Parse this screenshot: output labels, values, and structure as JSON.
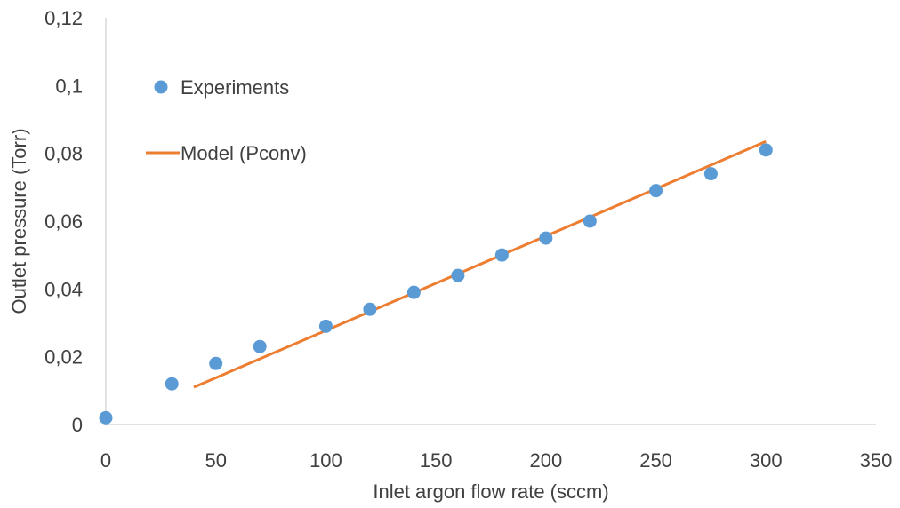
{
  "chart_data": {
    "type": "scatter",
    "xlabel": "Inlet argon flow rate (sccm)",
    "ylabel": "Outlet pressure (Torr)",
    "xlim": [
      0,
      350
    ],
    "ylim": [
      0,
      0.12
    ],
    "x_ticks": [
      0,
      50,
      100,
      150,
      200,
      250,
      300,
      350
    ],
    "x_tick_labels": [
      "0",
      "50",
      "100",
      "150",
      "200",
      "250",
      "300",
      "350"
    ],
    "y_ticks": [
      0,
      0.02,
      0.04,
      0.06,
      0.08,
      0.1,
      0.12
    ],
    "y_tick_labels": [
      "0",
      "0,02",
      "0,04",
      "0,06",
      "0,08",
      "0,1",
      "0,12"
    ],
    "grid": false,
    "legend_position": "top-left",
    "series": [
      {
        "name": "Experiments",
        "kind": "scatter",
        "color": "#5B9BD5",
        "x": [
          0,
          30,
          50,
          70,
          100,
          120,
          140,
          160,
          180,
          200,
          220,
          250,
          275,
          300
        ],
        "y": [
          0.002,
          0.012,
          0.018,
          0.023,
          0.029,
          0.034,
          0.039,
          0.044,
          0.05,
          0.055,
          0.06,
          0.069,
          0.074,
          0.081
        ]
      },
      {
        "name": "Model (Pconv)",
        "kind": "line",
        "color": "#ED7D31",
        "x": [
          40,
          300
        ],
        "y": [
          0.011,
          0.0835
        ]
      }
    ]
  }
}
